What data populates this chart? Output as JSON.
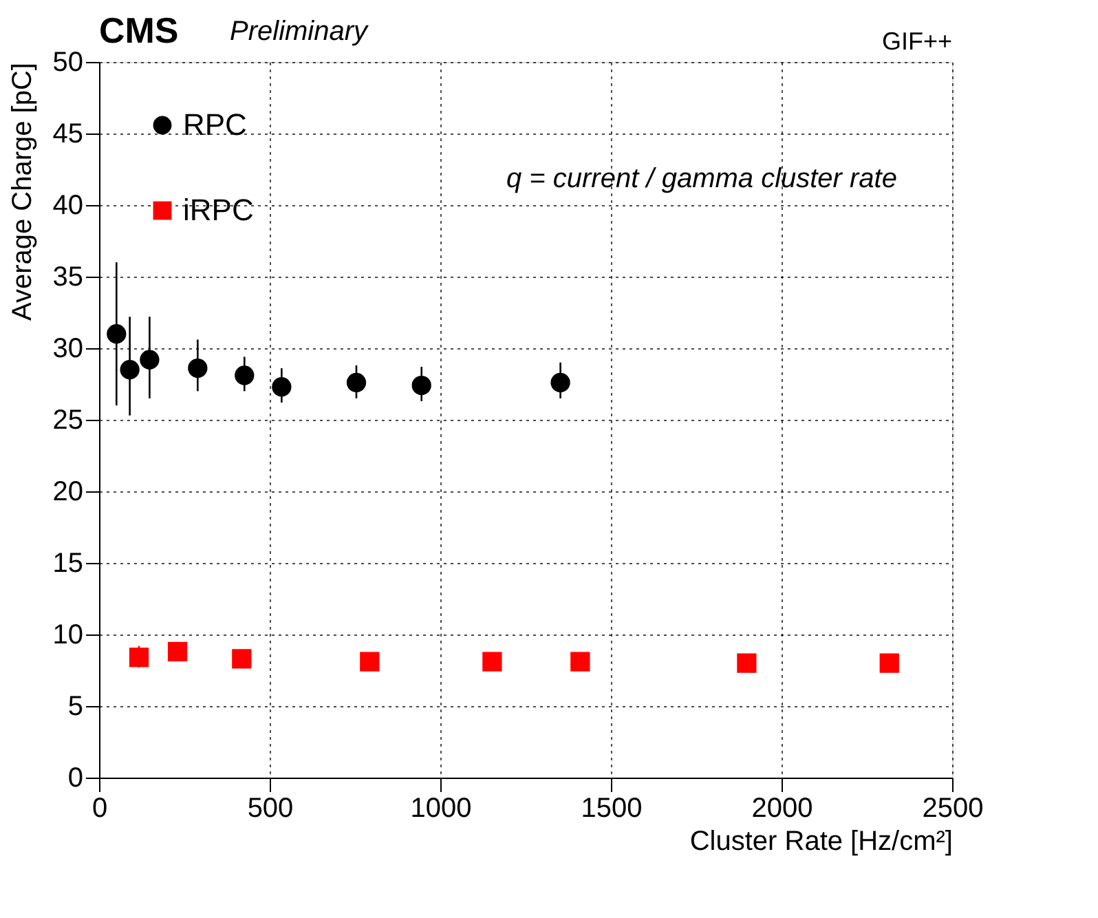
{
  "chart_data": {
    "type": "scatter",
    "xlabel": "Cluster Rate [Hz/cm²]",
    "ylabel": "Average Charge [pC]",
    "xlim": [
      0,
      2500
    ],
    "xticks": [
      0,
      500,
      1000,
      1500,
      2000,
      2500
    ],
    "ylim": [
      0,
      50
    ],
    "yticks": [
      0,
      5,
      10,
      15,
      20,
      25,
      30,
      35,
      40,
      45,
      50
    ],
    "grid": true,
    "legend": "top left",
    "annotations": [
      "CMS",
      "Preliminary",
      "GIF++",
      "q = current / gamma cluster rate"
    ],
    "series": [
      {
        "name": "RPC",
        "color": "#000000",
        "marker": "circle",
        "x": [
          51,
          90,
          148,
          289,
          426,
          535,
          754,
          945,
          1352
        ],
        "values": [
          31.0,
          28.5,
          29.2,
          28.6,
          28.1,
          27.3,
          27.6,
          27.4,
          27.6
        ],
        "errors": [
          [
            26,
            36
          ],
          [
            25.3,
            32.2
          ],
          [
            26.5,
            32.2
          ],
          [
            27,
            30.6
          ],
          [
            27,
            29.4
          ],
          [
            26.2,
            28.6
          ],
          [
            26.5,
            28.8
          ],
          [
            26.3,
            28.7
          ],
          [
            26.5,
            29
          ]
        ]
      },
      {
        "name": "iRPC",
        "color": "#ff0000",
        "marker": "square",
        "x": [
          117,
          230,
          418,
          793,
          1152,
          1410,
          1898,
          2316
        ],
        "values": [
          8.4,
          8.8,
          8.3,
          8.1,
          8.1,
          8.1,
          8.0,
          8.0
        ],
        "errors": [
          [
            7.7,
            9.2
          ],
          null,
          null,
          null,
          null,
          null,
          null,
          null
        ]
      }
    ]
  }
}
